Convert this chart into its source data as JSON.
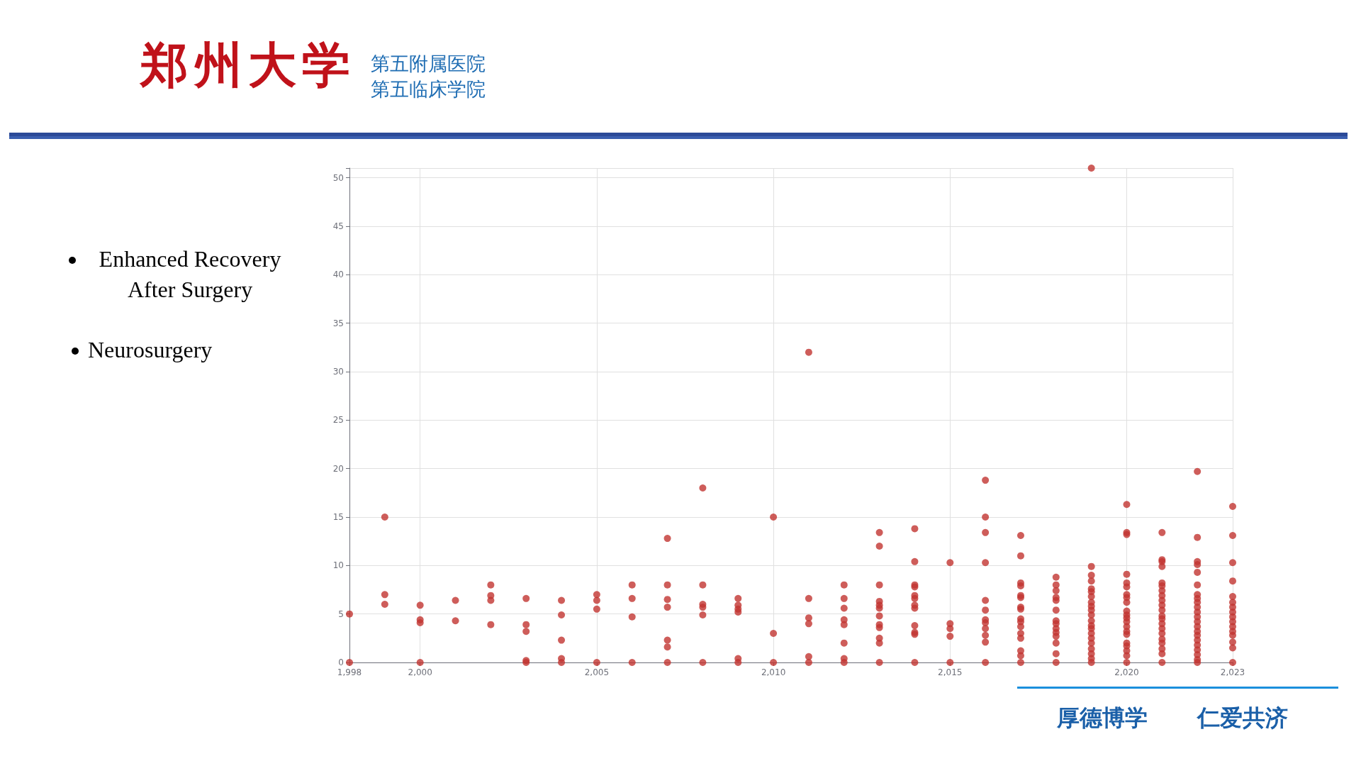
{
  "chart_data": {
    "type": "scatter",
    "annotations": [
      "郑州大学",
      "第五附属医院",
      "第五临床学院",
      "Enhanced Recovery After Surgery",
      "Neurosurgery",
      "厚德博学",
      "仁爱共济"
    ],
    "x": [
      1998,
      1998,
      1999,
      1999,
      1999,
      2000,
      2000,
      2000,
      2000,
      2001,
      2001,
      2002,
      2002,
      2002,
      2002,
      2003,
      2003,
      2003,
      2003,
      2003,
      2004,
      2004,
      2004,
      2004,
      2004,
      2005,
      2005,
      2005,
      2005,
      2006,
      2006,
      2006,
      2006,
      2007,
      2007,
      2007,
      2007,
      2007,
      2007,
      2007,
      2008,
      2008,
      2008,
      2008,
      2008,
      2008,
      2009,
      2009,
      2009,
      2009,
      2009,
      2009,
      2010,
      2010,
      2010,
      2011,
      2011,
      2011,
      2011,
      2011,
      2011,
      2012,
      2012,
      2012,
      2012,
      2012,
      2012,
      2012,
      2012,
      2013,
      2013,
      2013,
      2013,
      2013,
      2013,
      2013,
      2013,
      2013,
      2013,
      2013,
      2013,
      2014,
      2014,
      2014,
      2014,
      2014,
      2014,
      2014,
      2014,
      2014,
      2014,
      2014,
      2014,
      2015,
      2015,
      2015,
      2015,
      2015,
      2016,
      2016,
      2016,
      2016,
      2016,
      2016,
      2016,
      2016,
      2016,
      2016,
      2016,
      2016,
      2017,
      2017,
      2017,
      2017,
      2017,
      2017,
      2017,
      2017,
      2017,
      2017,
      2017,
      2017,
      2017,
      2017,
      2017,
      2017,
      2018,
      2018,
      2018,
      2018,
      2018,
      2018,
      2018,
      2018,
      2018,
      2018,
      2018,
      2018,
      2018,
      2018,
      2019,
      2019,
      2019,
      2019,
      2019,
      2019,
      2019,
      2019,
      2019,
      2019,
      2019,
      2019,
      2019,
      2019,
      2019,
      2019,
      2019,
      2019,
      2019,
      2019,
      2019,
      2020,
      2020,
      2020,
      2020,
      2020,
      2020,
      2020,
      2020,
      2020,
      2020,
      2020,
      2020,
      2020,
      2020,
      2020,
      2020,
      2020,
      2020,
      2020,
      2020,
      2020,
      2021,
      2021,
      2021,
      2021,
      2021,
      2021,
      2021,
      2021,
      2021,
      2021,
      2021,
      2021,
      2021,
      2021,
      2021,
      2021,
      2021,
      2021,
      2021,
      2021,
      2021,
      2022,
      2022,
      2022,
      2022,
      2022,
      2022,
      2022,
      2022,
      2022,
      2022,
      2022,
      2022,
      2022,
      2022,
      2022,
      2022,
      2022,
      2022,
      2022,
      2022,
      2022,
      2022,
      2023,
      2023,
      2023,
      2023,
      2023,
      2023,
      2023,
      2023,
      2023,
      2023,
      2023,
      2023,
      2023,
      2023,
      2023,
      2023
    ],
    "values": [
      5,
      0,
      15,
      7,
      6,
      5.9,
      4.4,
      4.1,
      0,
      6.4,
      4.3,
      8,
      6.9,
      6.4,
      3.9,
      6.6,
      3.9,
      3.2,
      0.2,
      0,
      6.4,
      4.9,
      2.3,
      0.4,
      0,
      7,
      6.4,
      5.5,
      0,
      8,
      6.6,
      4.7,
      0,
      12.8,
      8,
      6.5,
      5.7,
      2.3,
      1.6,
      0,
      18,
      8,
      6,
      5.7,
      4.9,
      0,
      6.6,
      5.9,
      5.5,
      5.2,
      0.4,
      0,
      15,
      3,
      0,
      32,
      6.6,
      4.6,
      4,
      0.6,
      0,
      8,
      6.6,
      5.6,
      4.4,
      3.9,
      2,
      0.4,
      0,
      13.4,
      12,
      8,
      6.3,
      5.9,
      5.6,
      4.8,
      3.9,
      3.6,
      2.5,
      2,
      0,
      13.8,
      10.4,
      8,
      7.8,
      6.9,
      6.6,
      5.9,
      5.6,
      3.8,
      3.1,
      2.9,
      0,
      10.3,
      4,
      3.5,
      2.7,
      0,
      18.8,
      15,
      13.4,
      10.3,
      6.4,
      5.4,
      4.4,
      4.1,
      3.5,
      2.8,
      2.1,
      0,
      13.1,
      11,
      8.2,
      7.9,
      6.9,
      6.7,
      5.7,
      5.5,
      4.5,
      4.2,
      3.7,
      3,
      2.5,
      1.2,
      0.7,
      0,
      8.8,
      8,
      7.4,
      6.7,
      6.4,
      5.4,
      4.3,
      4,
      3.5,
      3.1,
      2.7,
      2,
      0.9,
      0,
      51,
      9.9,
      9,
      8.4,
      7.6,
      7.3,
      6.8,
      6.2,
      5.8,
      5.4,
      4.9,
      4.3,
      3.8,
      3.5,
      3,
      2.5,
      2,
      1.4,
      0.9,
      0.4,
      0,
      16.3,
      13.4,
      13.2,
      9.1,
      8.2,
      7.8,
      7,
      6.7,
      6.2,
      5.3,
      4.9,
      4.6,
      4.2,
      3.7,
      3.2,
      2.9,
      2,
      1.7,
      1.2,
      0.7,
      0,
      13.4,
      10.6,
      10.4,
      9.9,
      8.2,
      7.9,
      7.4,
      6.9,
      6.4,
      5.9,
      5.4,
      4.8,
      4.5,
      4,
      3.5,
      3,
      2.4,
      2,
      1.4,
      0.9,
      0,
      19.7,
      12.9,
      10.4,
      10.1,
      9.3,
      8,
      7,
      6.6,
      6.2,
      5.7,
      5.2,
      4.7,
      4.2,
      3.7,
      3.2,
      2.8,
      2.3,
      1.8,
      1.3,
      0.8,
      0.3,
      0,
      16.1,
      13.1,
      10.3,
      8.4,
      6.8,
      6.2,
      5.7,
      5.2,
      4.7,
      4.2,
      3.7,
      3.2,
      2.8,
      2.1,
      1.5,
      0
    ],
    "color": "#c23531",
    "marker": "circle",
    "xlim": [
      1998,
      2023
    ],
    "xticks": [
      {
        "value": 1998,
        "label": "1,998"
      },
      {
        "value": 2000,
        "label": "2,000"
      },
      {
        "value": 2005,
        "label": "2,005"
      },
      {
        "value": 2010,
        "label": "2,010"
      },
      {
        "value": 2015,
        "label": "2,015"
      },
      {
        "value": 2020,
        "label": "2,020"
      },
      {
        "value": 2023,
        "label": "2,023"
      }
    ],
    "ylim": [
      0,
      51
    ],
    "yticks": [
      0,
      5,
      10,
      15,
      20,
      25,
      30,
      35,
      40,
      45,
      50,
      {
        "value": 51,
        "label": null
      }
    ],
    "grid": true
  }
}
